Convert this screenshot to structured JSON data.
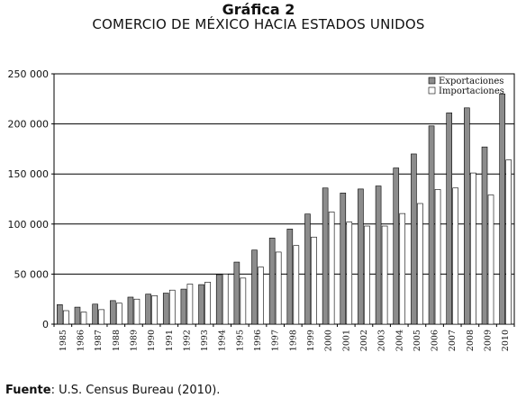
{
  "header": {
    "title": "Gráfica 2",
    "subtitle": "COMERCIO DE MÉXICO HACIA ESTADOS UNIDOS"
  },
  "footer": {
    "source_label": "Fuente",
    "source_text": ": U.S. Census Bureau (2010)."
  },
  "colors": {
    "exports": "#8c8c8c",
    "imports": "#ffffff",
    "bar_stroke": "#000000",
    "grid": "#000000"
  },
  "chart_data": {
    "type": "bar",
    "categories": [
      "1985",
      "1986",
      "1987",
      "1988",
      "1989",
      "1990",
      "1991",
      "1992",
      "1993",
      "1994",
      "1995",
      "1996",
      "1997",
      "1998",
      "1999",
      "2000",
      "2001",
      "2002",
      "2003",
      "2004",
      "2005",
      "2006",
      "2007",
      "2008",
      "2009",
      "2010"
    ],
    "series": [
      {
        "name": "Exportaciones",
        "values": [
          19500,
          17000,
          20000,
          23500,
          27000,
          30000,
          31000,
          35000,
          39500,
          49500,
          62000,
          74000,
          86000,
          95000,
          110000,
          136000,
          131000,
          135000,
          138000,
          156000,
          170000,
          198000,
          211000,
          216000,
          177000,
          230000
        ]
      },
      {
        "name": "Importaciones",
        "values": [
          13500,
          12000,
          14500,
          21000,
          25000,
          28500,
          34000,
          40000,
          42000,
          50000,
          46000,
          57000,
          72000,
          78500,
          87000,
          112000,
          102000,
          98000,
          98000,
          110500,
          120500,
          134500,
          136000,
          151000,
          129000,
          164000
        ]
      }
    ],
    "ylim": [
      0,
      250000
    ],
    "yticks": [
      0,
      50000,
      100000,
      150000,
      200000,
      250000
    ],
    "ytick_labels": [
      "0",
      "50 000",
      "100 000",
      "150 000",
      "200 000",
      "250 000"
    ],
    "grid": true,
    "legend_position": "top-right"
  }
}
